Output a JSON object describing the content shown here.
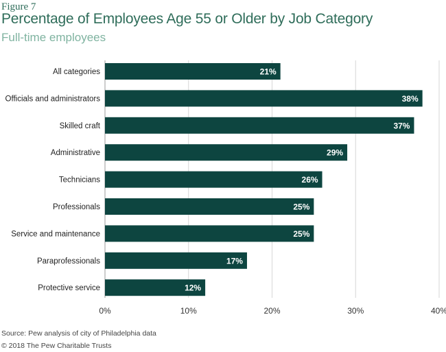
{
  "figure_label": "Figure 7",
  "chart_data": {
    "type": "bar",
    "orientation": "horizontal",
    "title": "Percentage of Employees Age 55 or Older by Job Category",
    "subtitle": "Full-time employees",
    "categories": [
      "All categories",
      "Officials and administrators",
      "Skilled craft",
      "Administrative",
      "Technicians",
      "Professionals",
      "Service and maintenance",
      "Paraprofessionals",
      "Protective service"
    ],
    "values": [
      21,
      38,
      37,
      29,
      26,
      25,
      25,
      17,
      12
    ],
    "data_labels": [
      "21%",
      "38%",
      "37%",
      "29%",
      "26%",
      "25%",
      "25%",
      "17%",
      "12%"
    ],
    "xlim": [
      0,
      40
    ],
    "x_ticks": [
      0,
      10,
      20,
      30,
      40
    ],
    "x_tick_labels": [
      "0%",
      "10%",
      "20%",
      "30%",
      "40%"
    ],
    "grid": true,
    "bar_color": "#0d4540",
    "label_color": "#ffffff"
  },
  "source": "Source: Pew analysis of city of Philadelphia data",
  "copyright": "© 2018 The Pew Charitable Trusts"
}
